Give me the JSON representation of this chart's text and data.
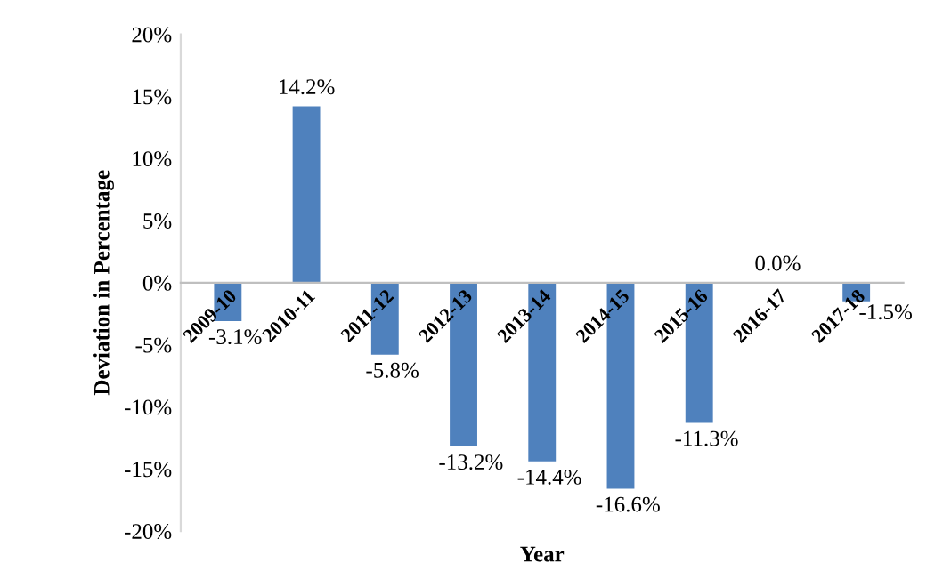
{
  "chart_data": {
    "type": "bar",
    "xlabel": "Year",
    "ylabel": "Deviation in Percentage",
    "categories": [
      "2009-10",
      "2010-11",
      "2011-12",
      "2012-13",
      "2013-14",
      "2014-15",
      "2015-16",
      "2016-17",
      "2017-18"
    ],
    "values": [
      -3.1,
      14.2,
      -5.8,
      -13.2,
      -14.4,
      -16.6,
      -11.3,
      0.0,
      -1.5
    ],
    "value_labels": [
      "-3.1%",
      "14.2%",
      "-5.8%",
      "-13.2%",
      "-14.4%",
      "-16.6%",
      "-11.3%",
      "0.0%",
      "-1.5%"
    ],
    "color": "#4f81bd",
    "ylim": [
      -20,
      20
    ],
    "yticks": [
      {
        "value": -20,
        "label": "-20%"
      },
      {
        "value": -15,
        "label": "-15%"
      },
      {
        "value": -10,
        "label": "-10%"
      },
      {
        "value": -5,
        "label": "-5%"
      },
      {
        "value": 0,
        "label": "0%"
      },
      {
        "value": 5,
        "label": "5%"
      },
      {
        "value": 10,
        "label": "10%"
      },
      {
        "value": 15,
        "label": "15%"
      },
      {
        "value": 20,
        "label": "20%"
      }
    ],
    "grid": false,
    "legend": false
  }
}
